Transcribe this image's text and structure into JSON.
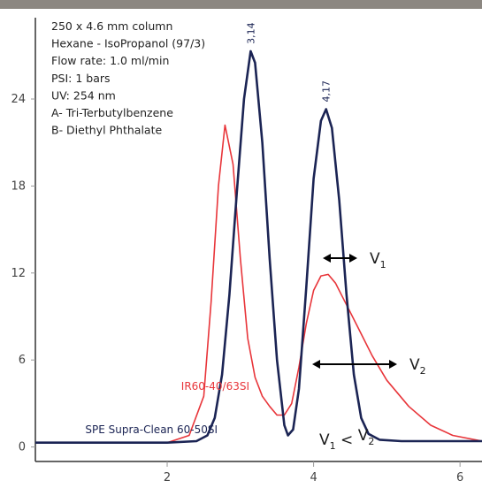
{
  "colors": {
    "header_bar": "#8c8781",
    "blue_series": "#1b2454",
    "red_series": "#e8353a",
    "axis": "#333333",
    "grid_tick": "#999999"
  },
  "info_lines": [
    "250 x 4.6 mm column",
    "Hexane - IsoPropanol (97/3)",
    "Flow rate: 1.0 ml/min",
    "PSI: 1 bars",
    "UV: 254 nm",
    "A- Tri-Terbutylbenzene",
    "B- Diethyl Phthalate"
  ],
  "annotations": {
    "v1_main": "V",
    "v1_sub": "1",
    "v2_main": "V",
    "v2_sub": "2",
    "compare_left_main": "V",
    "compare_left_sub": "1",
    "compare_op": " < ",
    "compare_right_main": "V",
    "compare_right_sub": "2"
  },
  "chart_data": {
    "type": "line",
    "title": "",
    "xlabel": "",
    "ylabel": "",
    "xlim": [
      0.2,
      6.3
    ],
    "ylim": [
      -1,
      29
    ],
    "x_ticks": [
      "2",
      "4",
      "6"
    ],
    "y_ticks": [
      "0",
      "6",
      "12",
      "18",
      "24"
    ],
    "peak_labels": [
      {
        "text": "3,14",
        "x": 3.14,
        "y": 27.3
      },
      {
        "text": "4,17",
        "x": 4.17,
        "y": 23.3
      }
    ],
    "series": [
      {
        "name": "SPE Supra-Clean 60-50SI",
        "color": "#1b2454",
        "x": [
          0.2,
          2.0,
          2.4,
          2.55,
          2.65,
          2.75,
          2.85,
          2.95,
          3.05,
          3.14,
          3.2,
          3.3,
          3.4,
          3.5,
          3.6,
          3.65,
          3.72,
          3.8,
          3.9,
          4.0,
          4.1,
          4.17,
          4.25,
          4.35,
          4.45,
          4.55,
          4.65,
          4.75,
          4.9,
          5.2,
          6.3
        ],
        "y": [
          0.3,
          0.3,
          0.4,
          0.8,
          2.0,
          5.0,
          10.5,
          17.5,
          24.0,
          27.3,
          26.5,
          21.0,
          13.0,
          6.0,
          1.5,
          0.8,
          1.2,
          4.0,
          11.0,
          18.5,
          22.5,
          23.3,
          22.0,
          17.0,
          10.5,
          5.0,
          2.0,
          0.9,
          0.5,
          0.4,
          0.4
        ]
      },
      {
        "name": "IR60-40/63SI",
        "color": "#e8353a",
        "x": [
          0.2,
          2.0,
          2.3,
          2.5,
          2.6,
          2.7,
          2.79,
          2.9,
          3.0,
          3.1,
          3.2,
          3.3,
          3.4,
          3.5,
          3.6,
          3.7,
          3.8,
          3.9,
          4.0,
          4.1,
          4.2,
          4.3,
          4.4,
          4.6,
          4.8,
          5.0,
          5.3,
          5.6,
          5.9,
          6.3
        ],
        "y": [
          0.3,
          0.3,
          0.8,
          3.5,
          10.0,
          18.0,
          22.2,
          19.5,
          13.0,
          7.5,
          4.8,
          3.5,
          2.8,
          2.2,
          2.2,
          3.0,
          5.5,
          8.5,
          10.8,
          11.8,
          11.9,
          11.3,
          10.3,
          8.3,
          6.3,
          4.6,
          2.8,
          1.5,
          0.8,
          0.4
        ]
      }
    ]
  }
}
